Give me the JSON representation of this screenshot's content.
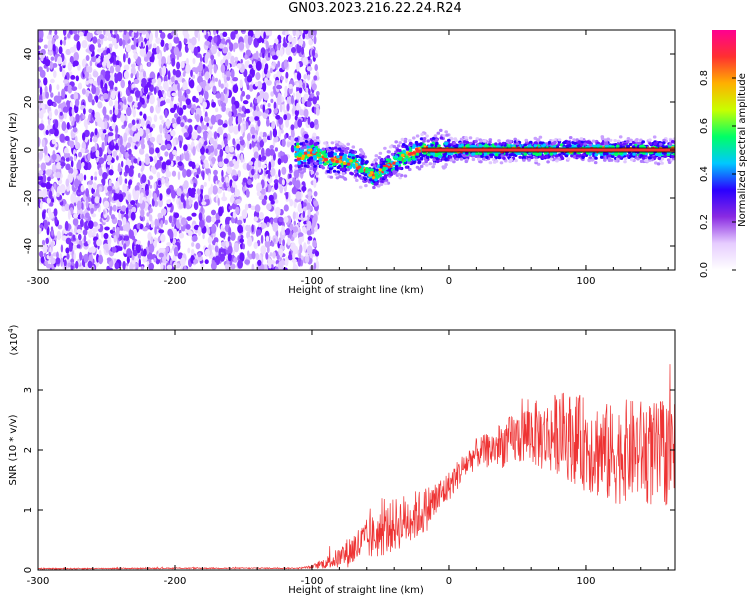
{
  "title": "GN03.2023.216.22.24.R24",
  "chart_data": [
    {
      "type": "heatmap",
      "title": "GN03.2023.216.22.24.R24",
      "xlabel": "Height of straight line (km)",
      "ylabel": "Frequency (Hz)",
      "xlim": [
        -300,
        165
      ],
      "ylim": [
        -50,
        50
      ],
      "xticks": [
        "-300",
        "-200",
        "-100",
        "0",
        "100"
      ],
      "yticks": [
        "-40",
        "-20",
        "0",
        "20",
        "40"
      ],
      "noise_region_x": [
        -300,
        -100
      ],
      "signal_line_freq_hz": 0,
      "signal_track": [
        {
          "x": -110,
          "y": -3
        },
        {
          "x": -100,
          "y": -1
        },
        {
          "x": -90,
          "y": -4
        },
        {
          "x": -80,
          "y": -4
        },
        {
          "x": -70,
          "y": -5
        },
        {
          "x": -60,
          "y": -9
        },
        {
          "x": -55,
          "y": -11
        },
        {
          "x": -50,
          "y": -9
        },
        {
          "x": -40,
          "y": -5
        },
        {
          "x": -30,
          "y": -2
        },
        {
          "x": -20,
          "y": 0
        },
        {
          "x": 0,
          "y": 0
        },
        {
          "x": 165,
          "y": 0
        }
      ],
      "colorbar": {
        "label": "Normalized spectral amplitude",
        "range": [
          0,
          1
        ],
        "ticks": [
          "0.0",
          "0.2",
          "0.4",
          "0.6",
          "0.8"
        ],
        "colors": [
          "#ffffff",
          "#e6ccff",
          "#8a2be2",
          "#2a00ff",
          "#00c8ff",
          "#00ff66",
          "#c8ff00",
          "#ffb000",
          "#ff3030",
          "#ff0090"
        ]
      },
      "grid": false
    },
    {
      "type": "line",
      "xlabel": "Height of straight line (km)",
      "ylabel": "SNR (10 * v/v)",
      "y_multiplier": "(x10",
      "y_multiplier_exp": "4",
      "y_multiplier_close": ")",
      "xlim": [
        -300,
        165
      ],
      "ylim": [
        0,
        4
      ],
      "xticks": [
        "-300",
        "-200",
        "-100",
        "0",
        "100"
      ],
      "yticks": [
        "0",
        "1",
        "2",
        "3"
      ],
      "color": "#ee3333",
      "series": [
        {
          "x": [
            -300,
            -200,
            -110,
            -100,
            -90,
            -80,
            -70,
            -60,
            -50,
            -40,
            -30,
            -20,
            -10,
            0,
            10,
            20,
            30,
            40,
            50,
            60,
            70,
            80,
            90,
            100,
            110,
            120,
            130,
            140,
            150,
            165
          ],
          "y": [
            0.02,
            0.03,
            0.03,
            0.05,
            0.12,
            0.2,
            0.35,
            0.5,
            0.6,
            0.75,
            0.85,
            0.95,
            1.15,
            1.4,
            1.7,
            1.95,
            2.0,
            2.1,
            2.2,
            2.3,
            2.2,
            2.3,
            2.2,
            2.1,
            2.0,
            1.9,
            2.0,
            2.0,
            1.9,
            2.0
          ],
          "spread": [
            0.01,
            0.01,
            0.01,
            0.03,
            0.1,
            0.18,
            0.3,
            0.35,
            0.4,
            0.45,
            0.45,
            0.4,
            0.35,
            0.25,
            0.25,
            0.25,
            0.3,
            0.4,
            0.45,
            0.55,
            0.6,
            0.7,
            0.75,
            0.8,
            0.85,
            0.85,
            0.85,
            0.85,
            0.9,
            0.9
          ]
        }
      ],
      "grid": false
    }
  ]
}
